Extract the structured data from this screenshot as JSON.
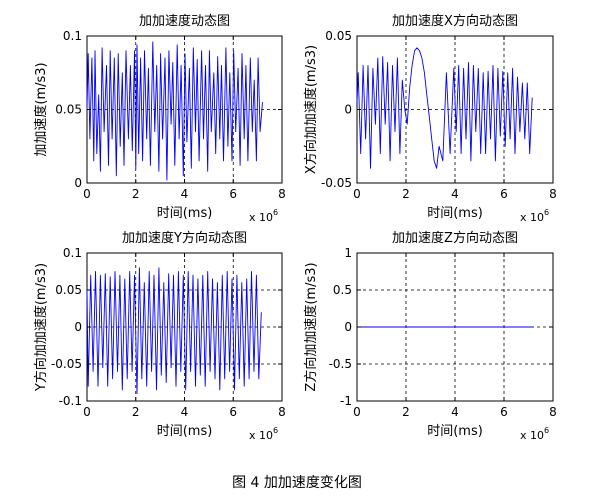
{
  "figure": {
    "caption": "图 4  加加速度变化图"
  },
  "chart_data": [
    {
      "type": "line",
      "title": "加加速度动态图",
      "xlabel": "时间(ms)",
      "ylabel": "加加速度(m/s3)",
      "x_multiplier": "x 10",
      "x_multiplier_exp": "6",
      "xlim": [
        0,
        8
      ],
      "ylim": [
        0,
        0.1
      ],
      "xticks": [
        0,
        2,
        4,
        6,
        8
      ],
      "xtick_labels": [
        "0",
        "2",
        "4",
        "6",
        "8"
      ],
      "yticks": [
        0,
        0.05,
        0.1
      ],
      "ytick_labels": [
        "0",
        "0.05",
        "0.1"
      ],
      "grid": true,
      "series": [
        {
          "color": "#0000ff",
          "x": [
            0.0,
            0.05,
            0.12,
            0.2,
            0.28,
            0.33,
            0.4,
            0.48,
            0.55,
            0.62,
            0.7,
            0.8,
            0.88,
            0.95,
            1.03,
            1.12,
            1.2,
            1.28,
            1.36,
            1.45,
            1.52,
            1.6,
            1.7,
            1.78,
            1.86,
            1.95,
            2.0,
            2.05,
            2.12,
            2.2,
            2.28,
            2.36,
            2.45,
            2.52,
            2.6,
            2.7,
            2.78,
            2.86,
            2.95,
            3.02,
            3.1,
            3.2,
            3.28,
            3.36,
            3.45,
            3.52,
            3.6,
            3.7,
            3.78,
            3.86,
            3.95,
            4.02,
            4.1,
            4.2,
            4.28,
            4.36,
            4.45,
            4.52,
            4.6,
            4.7,
            4.78,
            4.86,
            4.95,
            5.02,
            5.1,
            5.2,
            5.28,
            5.36,
            5.45,
            5.52,
            5.6,
            5.7,
            5.78,
            5.86,
            5.95,
            6.02,
            6.1,
            6.2,
            6.28,
            6.36,
            6.45,
            6.52,
            6.6,
            6.7,
            6.78,
            6.86,
            6.95,
            7.02,
            7.1,
            7.2
          ],
          "y": [
            0.05,
            0.088,
            0.03,
            0.085,
            0.015,
            0.09,
            0.02,
            0.06,
            0.008,
            0.092,
            0.035,
            0.08,
            0.012,
            0.09,
            0.03,
            0.085,
            0.005,
            0.088,
            0.025,
            0.075,
            0.012,
            0.09,
            0.03,
            0.08,
            0.022,
            0.09,
            0.01,
            0.094,
            0.02,
            0.085,
            0.015,
            0.09,
            0.03,
            0.078,
            0.012,
            0.096,
            0.035,
            0.08,
            0.008,
            0.088,
            0.03,
            0.085,
            0.002,
            0.09,
            0.04,
            0.082,
            0.012,
            0.094,
            0.03,
            0.08,
            0.005,
            0.088,
            0.028,
            0.078,
            0.01,
            0.092,
            0.035,
            0.084,
            0.015,
            0.09,
            0.03,
            0.08,
            0.008,
            0.09,
            0.035,
            0.075,
            0.02,
            0.086,
            0.03,
            0.08,
            0.015,
            0.092,
            0.025,
            0.075,
            0.015,
            0.09,
            0.035,
            0.078,
            0.012,
            0.088,
            0.03,
            0.08,
            0.015,
            0.085,
            0.035,
            0.07,
            0.015,
            0.085,
            0.035,
            0.055
          ]
        }
      ]
    },
    {
      "type": "line",
      "title": "加加速度X方向动态图",
      "xlabel": "时间(ms)",
      "ylabel": "X方向加加速度(m/s3)",
      "x_multiplier": "x 10",
      "x_multiplier_exp": "6",
      "xlim": [
        0,
        8
      ],
      "ylim": [
        -0.05,
        0.05
      ],
      "xticks": [
        0,
        2,
        4,
        6,
        8
      ],
      "xtick_labels": [
        "0",
        "2",
        "4",
        "6",
        "8"
      ],
      "yticks": [
        -0.05,
        0,
        0.05
      ],
      "ytick_labels": [
        "-0.05",
        "0",
        "0.05"
      ],
      "grid": true,
      "series": [
        {
          "color": "#0000ff",
          "x": [
            0.0,
            0.05,
            0.15,
            0.25,
            0.35,
            0.45,
            0.55,
            0.65,
            0.75,
            0.85,
            0.95,
            1.05,
            1.15,
            1.25,
            1.35,
            1.45,
            1.55,
            1.65,
            1.75,
            1.85,
            1.95,
            2.05,
            2.15,
            2.25,
            2.35,
            2.45,
            2.55,
            2.65,
            2.75,
            2.85,
            2.95,
            3.05,
            3.15,
            3.25,
            3.35,
            3.5,
            3.65,
            3.8,
            3.95,
            4.05,
            4.15,
            4.25,
            4.35,
            4.45,
            4.55,
            4.65,
            4.75,
            4.85,
            4.95,
            5.05,
            5.15,
            5.25,
            5.35,
            5.45,
            5.55,
            5.65,
            5.75,
            5.85,
            5.95,
            6.05,
            6.15,
            6.25,
            6.35,
            6.45,
            6.55,
            6.65,
            6.75,
            6.85,
            6.95,
            7.05,
            7.15
          ],
          "y": [
            0.005,
            0.025,
            -0.03,
            0.03,
            -0.02,
            0.03,
            -0.04,
            0.028,
            -0.01,
            0.035,
            -0.03,
            0.036,
            -0.01,
            0.032,
            -0.035,
            0.03,
            -0.015,
            0.035,
            -0.03,
            0.02,
            0.0,
            -0.01,
            0.015,
            0.03,
            0.04,
            0.042,
            0.04,
            0.035,
            0.025,
            0.01,
            -0.005,
            -0.02,
            -0.035,
            -0.04,
            -0.025,
            -0.035,
            0.025,
            -0.03,
            0.028,
            -0.015,
            0.03,
            -0.03,
            0.028,
            -0.02,
            0.032,
            -0.035,
            0.03,
            -0.015,
            0.028,
            -0.03,
            0.025,
            -0.03,
            0.026,
            -0.02,
            0.03,
            -0.035,
            0.028,
            -0.018,
            0.026,
            -0.025,
            0.025,
            -0.02,
            0.028,
            -0.03,
            0.022,
            -0.015,
            0.018,
            -0.02,
            0.018,
            -0.03,
            0.008
          ]
        }
      ]
    },
    {
      "type": "line",
      "title": "加加速度Y方向动态图",
      "xlabel": "时间(ms)",
      "ylabel": "Y方向加加速度(m/s3)",
      "x_multiplier": "x 10",
      "x_multiplier_exp": "6",
      "xlim": [
        0,
        8
      ],
      "ylim": [
        -0.1,
        0.1
      ],
      "xticks": [
        0,
        2,
        4,
        6,
        8
      ],
      "xtick_labels": [
        "0",
        "2",
        "4",
        "6",
        "8"
      ],
      "yticks": [
        -0.1,
        -0.05,
        0,
        0.05,
        0.1
      ],
      "ytick_labels": [
        "-0.1",
        "-0.05",
        "0",
        "0.05",
        "0.1"
      ],
      "grid": true,
      "series": [
        {
          "color": "#0000ff",
          "x": [
            0.0,
            0.05,
            0.15,
            0.25,
            0.35,
            0.45,
            0.55,
            0.65,
            0.75,
            0.85,
            0.95,
            1.05,
            1.15,
            1.25,
            1.35,
            1.45,
            1.55,
            1.65,
            1.75,
            1.85,
            1.95,
            2.05,
            2.15,
            2.25,
            2.35,
            2.45,
            2.55,
            2.65,
            2.75,
            2.85,
            2.95,
            3.05,
            3.15,
            3.25,
            3.35,
            3.45,
            3.55,
            3.65,
            3.75,
            3.85,
            3.95,
            4.05,
            4.15,
            4.25,
            4.35,
            4.45,
            4.55,
            4.65,
            4.75,
            4.85,
            4.95,
            5.05,
            5.15,
            5.25,
            5.35,
            5.45,
            5.55,
            5.65,
            5.75,
            5.85,
            5.95,
            6.05,
            6.15,
            6.25,
            6.35,
            6.45,
            6.55,
            6.65,
            6.75,
            6.85,
            6.95,
            7.05,
            7.15
          ],
          "y": [
            0.05,
            -0.08,
            0.07,
            -0.06,
            0.075,
            -0.08,
            0.07,
            -0.055,
            0.072,
            -0.08,
            0.068,
            -0.07,
            0.075,
            -0.06,
            0.07,
            -0.085,
            0.065,
            -0.07,
            0.075,
            -0.06,
            0.07,
            -0.09,
            0.08,
            -0.07,
            0.06,
            -0.08,
            0.075,
            -0.06,
            0.07,
            -0.085,
            0.08,
            -0.065,
            0.06,
            -0.075,
            0.072,
            -0.055,
            0.07,
            -0.08,
            0.075,
            -0.06,
            0.07,
            -0.085,
            0.075,
            -0.06,
            0.07,
            -0.08,
            0.065,
            -0.065,
            0.07,
            -0.08,
            0.075,
            -0.06,
            0.065,
            -0.07,
            0.06,
            -0.085,
            0.07,
            -0.07,
            0.075,
            -0.06,
            0.065,
            -0.085,
            0.07,
            -0.07,
            0.06,
            -0.08,
            0.065,
            -0.07,
            0.075,
            -0.06,
            0.07,
            -0.07,
            0.02
          ]
        }
      ]
    },
    {
      "type": "line",
      "title": "加加速度Z方向动态图",
      "xlabel": "时间(ms)",
      "ylabel": "Z方向加加速度(m/s3)",
      "x_multiplier": "x 10",
      "x_multiplier_exp": "6",
      "xlim": [
        0,
        8
      ],
      "ylim": [
        -1,
        1
      ],
      "xticks": [
        0,
        2,
        4,
        6,
        8
      ],
      "xtick_labels": [
        "0",
        "2",
        "4",
        "6",
        "8"
      ],
      "yticks": [
        -1,
        -0.5,
        0,
        0.5,
        1
      ],
      "ytick_labels": [
        "-1",
        "-0.5",
        "0",
        "0.5",
        "1"
      ],
      "grid": true,
      "series": [
        {
          "color": "#0000ff",
          "x": [
            0,
            7.2
          ],
          "y": [
            0,
            0
          ]
        }
      ]
    }
  ]
}
